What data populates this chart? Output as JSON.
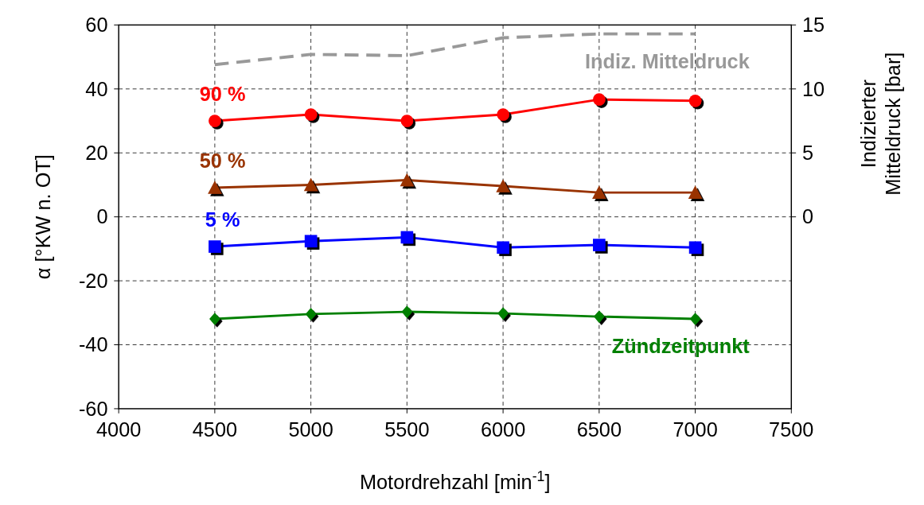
{
  "chart_data": {
    "type": "line",
    "xlabel": "Motordrehzahl [min$^{-1}$]",
    "ylabel": "α [°KW n. OT]",
    "y2label": "Indizierter Mitteldruck [bar]",
    "x": [
      4500,
      5000,
      5500,
      6000,
      6500,
      7000
    ],
    "xlim": [
      4000,
      7500
    ],
    "xticks": [
      4000,
      4500,
      5000,
      5500,
      6000,
      6500,
      7000,
      7500
    ],
    "ylim": [
      -60,
      60
    ],
    "yticks": [
      -60,
      -40,
      -20,
      0,
      20,
      40,
      60
    ],
    "y2lim": [
      -15,
      15
    ],
    "y2ticks": [
      0,
      5,
      10,
      15
    ],
    "grid": true,
    "line_style": "solid",
    "series": [
      {
        "name": "90 %",
        "color": "#ff0000",
        "marker": "circle",
        "values": [
          30,
          32,
          30,
          32,
          36.7,
          36.3
        ]
      },
      {
        "name": "50 %",
        "color": "#993300",
        "marker": "triangle",
        "values": [
          9.1,
          10,
          11.5,
          9.6,
          7.6,
          7.6
        ]
      },
      {
        "name": "5 %",
        "color": "#0000ff",
        "marker": "square",
        "values": [
          -9.3,
          -7.6,
          -6.4,
          -9.6,
          -8.8,
          -9.6
        ]
      },
      {
        "name": "Zündzeitpunkt",
        "color": "#008000",
        "marker": "diamond",
        "values": [
          -31.9,
          -30.4,
          -29.7,
          -30.2,
          -31.2,
          -31.9
        ]
      },
      {
        "name": "Indiz. Mitteldruck",
        "color": "#999999",
        "marker": "none",
        "line_style": "dashed",
        "axis": "y2",
        "values": [
          11.9,
          12.7,
          12.6,
          14.0,
          14.3,
          14.3
        ]
      }
    ]
  }
}
